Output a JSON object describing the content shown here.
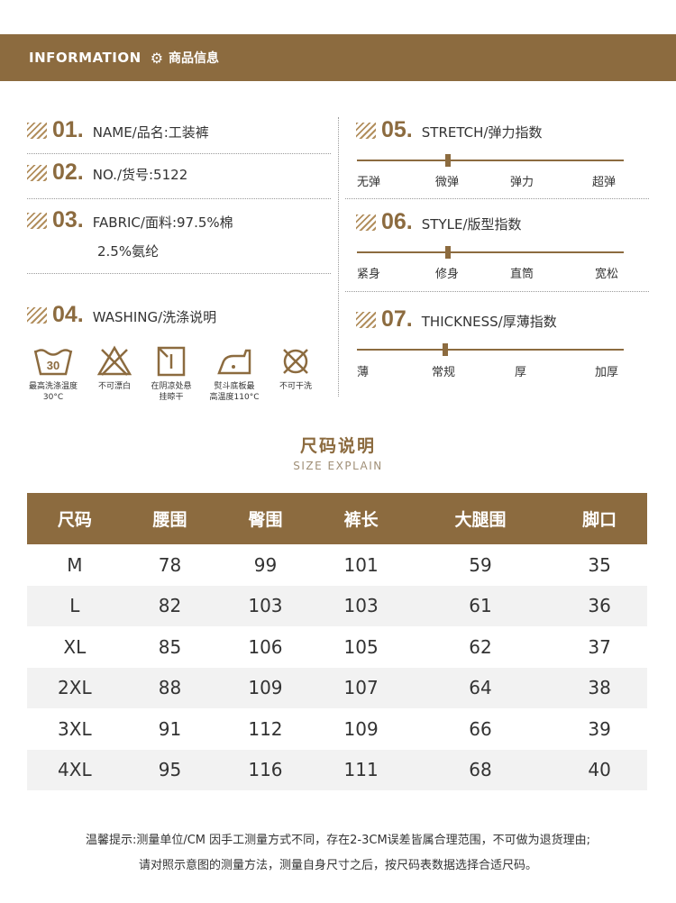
{
  "banner": {
    "title": "INFORMATION",
    "subtitle": "商品信息",
    "icon": "gear-icon"
  },
  "info": {
    "name": {
      "num": "01.",
      "label": "NAME/品名:工装裤"
    },
    "no": {
      "num": "02.",
      "label": "NO./货号:5122"
    },
    "fabric": {
      "num": "03.",
      "label": "FABRIC/面料:97.5%棉",
      "label2": "2.5%氨纶"
    },
    "washing": {
      "num": "04.",
      "label": "WASHING/洗涤说明"
    }
  },
  "washing_icons": [
    {
      "icon": "wash-30-icon",
      "symbol": "30",
      "caption1": "最高洗涤温度",
      "caption2": "30°C"
    },
    {
      "icon": "no-bleach-icon",
      "caption1": "不可漂白",
      "caption2": ""
    },
    {
      "icon": "shade-dry-icon",
      "caption1": "在阴凉处悬",
      "caption2": "挂晾干"
    },
    {
      "icon": "iron-icon",
      "caption1": "熨斗底板最",
      "caption2": "高温度110°C"
    },
    {
      "icon": "no-dryclean-icon",
      "caption1": "不可干洗",
      "caption2": ""
    }
  ],
  "indices": {
    "stretch": {
      "num": "05.",
      "label": "STRETCH/弹力指数",
      "levels": [
        "无弹",
        "微弹",
        "弹力",
        "超弹"
      ],
      "value": 0.34
    },
    "style": {
      "num": "06.",
      "label": "STYLE/版型指数",
      "levels": [
        "紧身",
        "修身",
        "直筒",
        "宽松"
      ],
      "value": 0.34
    },
    "thickness": {
      "num": "07.",
      "label": "THICKNESS/厚薄指数",
      "levels": [
        "薄",
        "常规",
        "厚",
        "加厚"
      ],
      "value": 0.33
    }
  },
  "size_section": {
    "title": "尺码说明",
    "subtitle": "SIZE EXPLAIN"
  },
  "size_table": {
    "headers": [
      "尺码",
      "腰围",
      "臀围",
      "裤长",
      "大腿围",
      "脚口"
    ],
    "rows": [
      [
        "M",
        "78",
        "99",
        "101",
        "59",
        "35"
      ],
      [
        "L",
        "82",
        "103",
        "103",
        "61",
        "36"
      ],
      [
        "XL",
        "85",
        "106",
        "105",
        "62",
        "37"
      ],
      [
        "2XL",
        "88",
        "109",
        "107",
        "64",
        "38"
      ],
      [
        "3XL",
        "91",
        "112",
        "109",
        "66",
        "39"
      ],
      [
        "4XL",
        "95",
        "116",
        "111",
        "68",
        "40"
      ]
    ]
  },
  "notes": {
    "line1": "温馨提示:测量单位/CM 因手工测量方式不同，存在2-3CM误差皆属合理范围，不可做为退货理由;",
    "line2": "请对照示意图的测量方法，测量自身尺寸之后，按尺码表数据选择合适尺码。"
  },
  "colors": {
    "brand": "#8c6b3f",
    "row_alt": "#f2f2f2"
  }
}
